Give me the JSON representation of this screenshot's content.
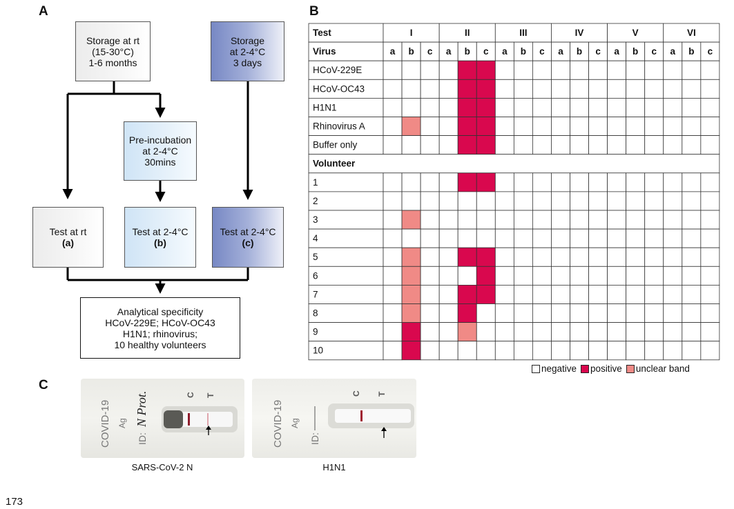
{
  "panel_labels": {
    "a": "A",
    "b": "B",
    "c": "C"
  },
  "flow": {
    "storage_rt": "Storage at rt\n(15-30°C)\n1-6 months",
    "storage_cold": "Storage\nat 2-4°C\n3 days",
    "preincubation": "Pre-incubation\nat 2-4°C\n30mins",
    "test_a": {
      "text": "Test at rt",
      "tag": "(a)"
    },
    "test_b": {
      "text": "Test at 2-4°C",
      "tag": "(b)"
    },
    "test_c": {
      "text": "Test at 2-4°C",
      "tag": "(c)"
    },
    "specificity": "Analytical specificity\nHCoV-229E; HCoV-OC43\nH1N1; rhinovirus;\n10 healthy volunteers",
    "colors": {
      "gray": "#ececec",
      "light_blue": "#cfe4f6",
      "dark_blue": "#7788c4"
    }
  },
  "table": {
    "header_test": "Test",
    "header_virus": "Virus",
    "tests": [
      "I",
      "II",
      "III",
      "IV",
      "V",
      "VI"
    ],
    "sub_columns": [
      "a",
      "b",
      "c"
    ],
    "section_volunteer": "Volunteer",
    "virus_rows": [
      {
        "label": "HCoV-229E",
        "cells": [
          0,
          0,
          0,
          0,
          2,
          2,
          0,
          0,
          0,
          0,
          0,
          0,
          0,
          0,
          0,
          0,
          0,
          0
        ]
      },
      {
        "label": "HCoV-OC43",
        "cells": [
          0,
          0,
          0,
          0,
          2,
          2,
          0,
          0,
          0,
          0,
          0,
          0,
          0,
          0,
          0,
          0,
          0,
          0
        ]
      },
      {
        "label": "H1N1",
        "cells": [
          0,
          0,
          0,
          0,
          2,
          2,
          0,
          0,
          0,
          0,
          0,
          0,
          0,
          0,
          0,
          0,
          0,
          0
        ]
      },
      {
        "label": "Rhinovirus A",
        "cells": [
          0,
          1,
          0,
          0,
          2,
          2,
          0,
          0,
          0,
          0,
          0,
          0,
          0,
          0,
          0,
          0,
          0,
          0
        ]
      },
      {
        "label": "Buffer only",
        "cells": [
          0,
          0,
          0,
          0,
          2,
          2,
          0,
          0,
          0,
          0,
          0,
          0,
          0,
          0,
          0,
          0,
          0,
          0
        ]
      }
    ],
    "volunteer_rows": [
      {
        "label": "1",
        "cells": [
          0,
          0,
          0,
          0,
          2,
          2,
          0,
          0,
          0,
          0,
          0,
          0,
          0,
          0,
          0,
          0,
          0,
          0
        ]
      },
      {
        "label": "2",
        "cells": [
          0,
          0,
          0,
          0,
          0,
          0,
          0,
          0,
          0,
          0,
          0,
          0,
          0,
          0,
          0,
          0,
          0,
          0
        ]
      },
      {
        "label": "3",
        "cells": [
          0,
          1,
          0,
          0,
          0,
          0,
          0,
          0,
          0,
          0,
          0,
          0,
          0,
          0,
          0,
          0,
          0,
          0
        ]
      },
      {
        "label": "4",
        "cells": [
          0,
          0,
          0,
          0,
          0,
          0,
          0,
          0,
          0,
          0,
          0,
          0,
          0,
          0,
          0,
          0,
          0,
          0
        ]
      },
      {
        "label": "5",
        "cells": [
          0,
          1,
          0,
          0,
          2,
          2,
          0,
          0,
          0,
          0,
          0,
          0,
          0,
          0,
          0,
          0,
          0,
          0
        ]
      },
      {
        "label": "6",
        "cells": [
          0,
          1,
          0,
          0,
          0,
          2,
          0,
          0,
          0,
          0,
          0,
          0,
          0,
          0,
          0,
          0,
          0,
          0
        ]
      },
      {
        "label": "7",
        "cells": [
          0,
          1,
          0,
          0,
          2,
          2,
          0,
          0,
          0,
          0,
          0,
          0,
          0,
          0,
          0,
          0,
          0,
          0
        ]
      },
      {
        "label": "8",
        "cells": [
          0,
          1,
          0,
          0,
          2,
          0,
          0,
          0,
          0,
          0,
          0,
          0,
          0,
          0,
          0,
          0,
          0,
          0
        ]
      },
      {
        "label": "9",
        "cells": [
          0,
          2,
          0,
          0,
          1,
          0,
          0,
          0,
          0,
          0,
          0,
          0,
          0,
          0,
          0,
          0,
          0,
          0
        ]
      },
      {
        "label": "10",
        "cells": [
          0,
          2,
          0,
          0,
          0,
          0,
          0,
          0,
          0,
          0,
          0,
          0,
          0,
          0,
          0,
          0,
          0,
          0
        ]
      }
    ],
    "cell_colors": {
      "negative": "#ffffff",
      "unclear": "#f08a86",
      "positive": "#d9084e"
    }
  },
  "legend": {
    "negative": "negative",
    "positive": "positive",
    "unclear": "unclear band"
  },
  "photos": [
    {
      "caption": "SARS-CoV-2 N",
      "brand": "COVID-19",
      "sub": "Ag",
      "id_label": "ID:",
      "id_value": "N Prot.",
      "c_mark": "C",
      "t_mark": "T"
    },
    {
      "caption": "H1N1",
      "brand": "COVID-19",
      "sub": "Ag",
      "id_label": "ID:",
      "id_value": "",
      "c_mark": "C",
      "t_mark": "T"
    }
  ],
  "page_number": "173"
}
